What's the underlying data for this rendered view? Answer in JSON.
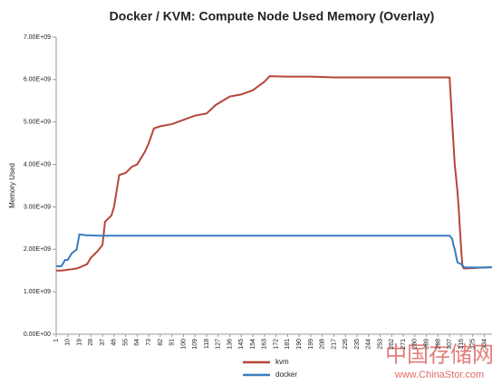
{
  "chart_data": {
    "type": "line",
    "title": "Docker / KVM: Compute Node Used Memory (Overlay)",
    "y_label": "Memory Used",
    "x": [
      1,
      5,
      8,
      10,
      13,
      17,
      19,
      25,
      28,
      33,
      37,
      39,
      44,
      46,
      50,
      55,
      60,
      64,
      70,
      73,
      77,
      82,
      91,
      100,
      109,
      118,
      125,
      136,
      145,
      154,
      163,
      167,
      181,
      199,
      217,
      244,
      271,
      298,
      307,
      309,
      310,
      311,
      313,
      314,
      316,
      317,
      318,
      320,
      334,
      340
    ],
    "series": [
      {
        "name": "kvm",
        "color": "#b5473a",
        "values": [
          1500000000,
          1500000000,
          1510000000,
          1520000000,
          1530000000,
          1550000000,
          1570000000,
          1650000000,
          1800000000,
          1950000000,
          2100000000,
          2650000000,
          2800000000,
          3000000000,
          3750000000,
          3800000000,
          3950000000,
          4000000000,
          4300000000,
          4500000000,
          4850000000,
          4900000000,
          4950000000,
          5050000000,
          5150000000,
          5200000000,
          5400000000,
          5600000000,
          5650000000,
          5750000000,
          5950000000,
          6080000000,
          6070000000,
          6070000000,
          6050000000,
          6050000000,
          6050000000,
          6050000000,
          6050000000,
          5000000000,
          4500000000,
          4000000000,
          3400000000,
          3000000000,
          2000000000,
          1600000000,
          1550000000,
          1550000000,
          1570000000,
          1580000000
        ]
      },
      {
        "name": "docker",
        "color": "#3b7bbf",
        "values": [
          1600000000,
          1600000000,
          1750000000,
          1750000000,
          1900000000,
          2000000000,
          2350000000,
          2330000000,
          2330000000,
          2320000000,
          2320000000,
          2320000000,
          2320000000,
          2320000000,
          2320000000,
          2320000000,
          2320000000,
          2320000000,
          2320000000,
          2320000000,
          2320000000,
          2320000000,
          2320000000,
          2320000000,
          2320000000,
          2320000000,
          2320000000,
          2320000000,
          2320000000,
          2320000000,
          2320000000,
          2320000000,
          2320000000,
          2320000000,
          2320000000,
          2320000000,
          2320000000,
          2320000000,
          2320000000,
          2250000000,
          2100000000,
          2000000000,
          1700000000,
          1680000000,
          1650000000,
          1630000000,
          1580000000,
          1570000000,
          1570000000,
          1580000000
        ]
      }
    ],
    "xlim": [
      1,
      340
    ],
    "xticks": [
      1,
      10,
      19,
      28,
      37,
      46,
      55,
      64,
      73,
      82,
      91,
      100,
      109,
      118,
      127,
      136,
      145,
      154,
      163,
      172,
      181,
      190,
      199,
      208,
      217,
      226,
      235,
      244,
      253,
      262,
      271,
      280,
      289,
      298,
      307,
      316,
      325,
      334
    ],
    "ylim": [
      0,
      7000000000
    ],
    "yticks": [
      {
        "value": 0,
        "label": "0.00E+00"
      },
      {
        "value": 1000000000,
        "label": "1.00E+09"
      },
      {
        "value": 2000000000,
        "label": "2.00E+09"
      },
      {
        "value": 3000000000,
        "label": "3.00E+09"
      },
      {
        "value": 4000000000,
        "label": "4.00E+09"
      },
      {
        "value": 5000000000,
        "label": "5.00E+09"
      },
      {
        "value": 6000000000,
        "label": "6.00E+09"
      },
      {
        "value": 7000000000,
        "label": "7.00E+09"
      }
    ],
    "grid": false,
    "legend": "bottom"
  },
  "watermark": {
    "title": "中国存储网",
    "url": "www.ChinaStor.com"
  }
}
